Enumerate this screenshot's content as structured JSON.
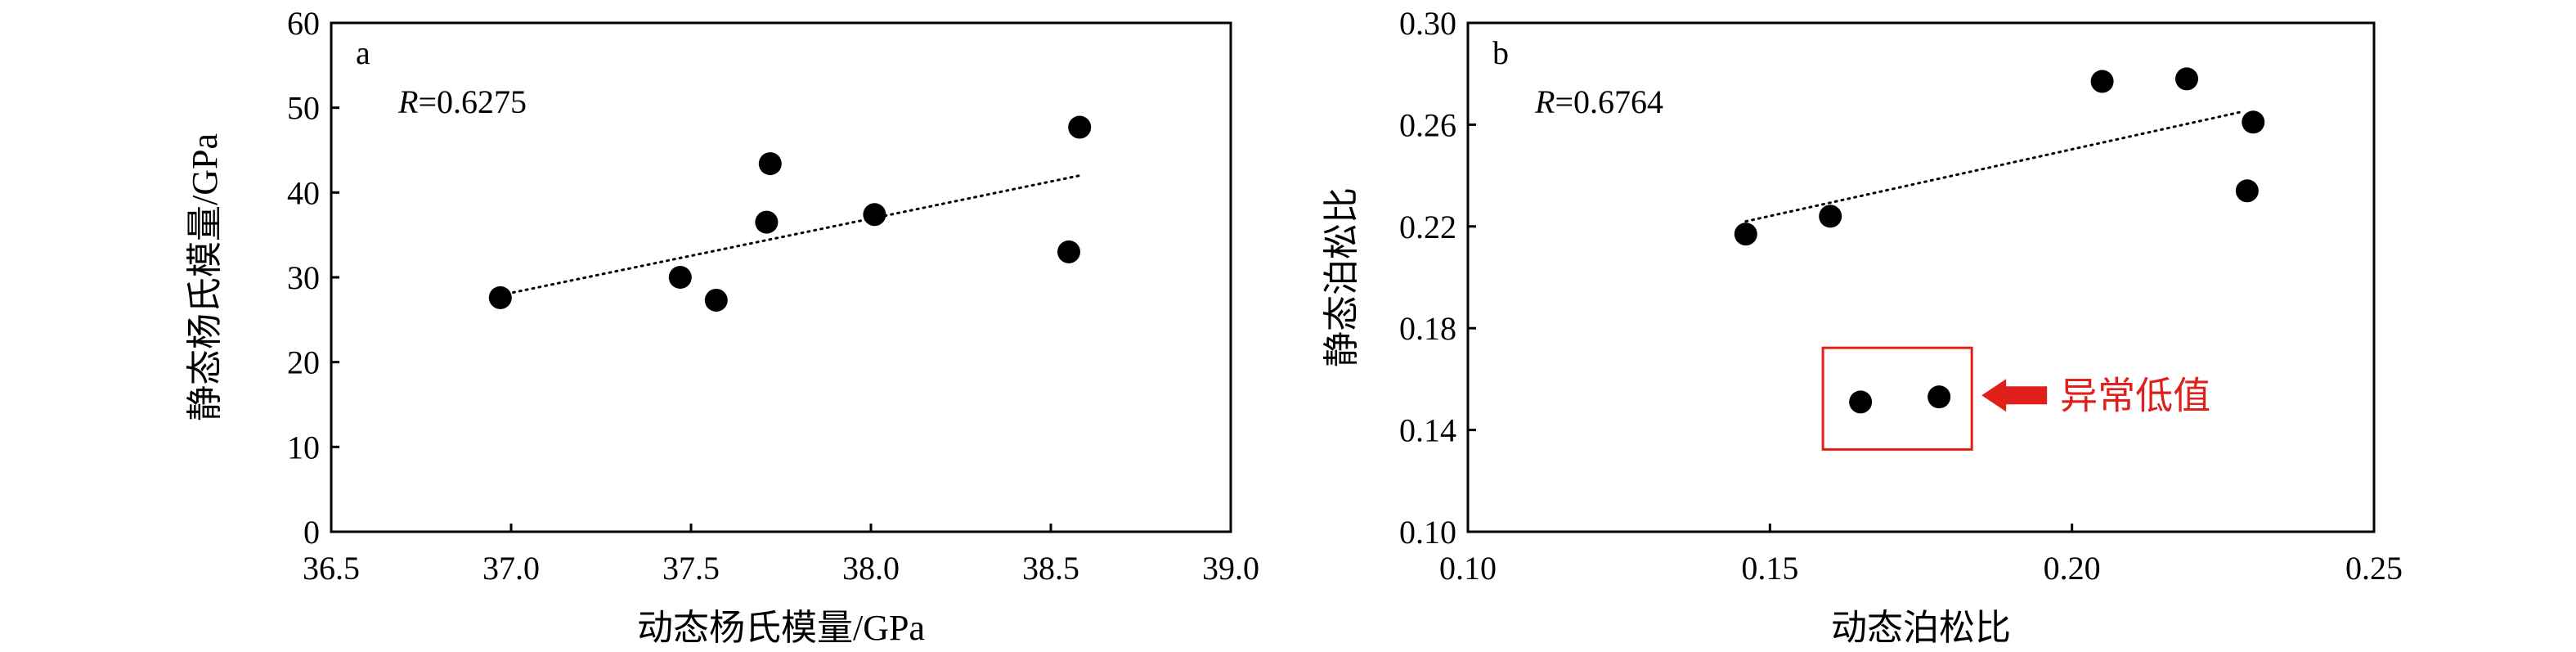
{
  "chart_data": [
    {
      "type": "scatter",
      "panel_label": "a",
      "annotation_prefix": "R",
      "annotation_value": "=0.6275",
      "xlabel": "动态杨氏模量/GPa",
      "ylabel": "静态杨氏模量/GPa",
      "xlim": [
        36.5,
        39.0
      ],
      "ylim": [
        0,
        60
      ],
      "xticks": [
        "36.5",
        "37.0",
        "37.5",
        "38.0",
        "38.5",
        "39.0"
      ],
      "yticks": [
        "0",
        "10",
        "20",
        "30",
        "40",
        "50",
        "60"
      ],
      "points": [
        {
          "x": 36.97,
          "y": 27.6
        },
        {
          "x": 37.47,
          "y": 30.0
        },
        {
          "x": 37.57,
          "y": 27.3
        },
        {
          "x": 37.71,
          "y": 36.5
        },
        {
          "x": 37.72,
          "y": 43.4
        },
        {
          "x": 38.01,
          "y": 37.4
        },
        {
          "x": 38.55,
          "y": 33.0
        },
        {
          "x": 38.58,
          "y": 47.7
        }
      ],
      "trendline": {
        "style": "dotted",
        "x": [
          36.97,
          38.58
        ],
        "y": [
          27.9,
          42.0
        ]
      },
      "grid": false
    },
    {
      "type": "scatter",
      "panel_label": "b",
      "annotation_prefix": "R",
      "annotation_value": "=0.6764",
      "xlabel": "动态泊松比",
      "ylabel": "静态泊松比",
      "xlim": [
        0.1,
        0.25
      ],
      "ylim": [
        0.1,
        0.3
      ],
      "xticks": [
        "0.10",
        "0.15",
        "0.20",
        "0.25"
      ],
      "yticks": [
        "0.10",
        "0.14",
        "0.18",
        "0.22",
        "0.26",
        "0.30"
      ],
      "points": [
        {
          "x": 0.146,
          "y": 0.217
        },
        {
          "x": 0.16,
          "y": 0.224
        },
        {
          "x": 0.205,
          "y": 0.277
        },
        {
          "x": 0.219,
          "y": 0.278
        },
        {
          "x": 0.229,
          "y": 0.234
        },
        {
          "x": 0.23,
          "y": 0.261
        }
      ],
      "outliers": [
        {
          "x": 0.165,
          "y": 0.151
        },
        {
          "x": 0.178,
          "y": 0.153
        }
      ],
      "outlier_label": "异常低值",
      "trendline": {
        "style": "dotted",
        "x": [
          0.146,
          0.228
        ],
        "y": [
          0.222,
          0.265
        ]
      },
      "highlight_color": "#e0201b",
      "grid": false
    }
  ]
}
